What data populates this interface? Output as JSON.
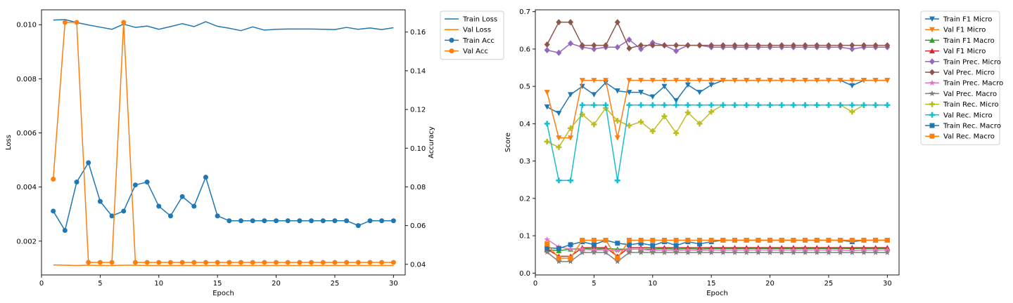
{
  "chart_data": [
    {
      "type": "line",
      "title": "",
      "xlabel": "Epoch",
      "ylabel": "Loss",
      "y2label": "Accuracy",
      "xlim": [
        0,
        31
      ],
      "ylim": [
        0.00075,
        0.01055
      ],
      "y2lim": [
        0.0345,
        0.1715
      ],
      "x": [
        1,
        2,
        3,
        4,
        5,
        6,
        7,
        8,
        9,
        10,
        11,
        12,
        13,
        14,
        15,
        16,
        17,
        18,
        19,
        20,
        21,
        22,
        23,
        24,
        25,
        26,
        27,
        28,
        29,
        30
      ],
      "x_ticks": [
        0,
        5,
        10,
        15,
        20,
        25,
        30
      ],
      "y_ticks": [
        0.002,
        0.004,
        0.006,
        0.008,
        0.01
      ],
      "y_tick_labels": [
        "0.002",
        "0.004",
        "0.006",
        "0.008",
        "0.010"
      ],
      "y2_ticks": [
        0.04,
        0.06,
        0.08,
        0.1,
        0.12,
        0.14,
        0.16
      ],
      "y2_tick_labels": [
        "0.04",
        "0.06",
        "0.08",
        "0.10",
        "0.12",
        "0.14",
        "0.16"
      ],
      "legend_position": "outside-right",
      "series": [
        {
          "name": "Train Loss",
          "axis": "left",
          "color": "#1f77b4",
          "marker": "none",
          "values": [
            0.01017,
            0.01019,
            0.01008,
            0.00999,
            0.00991,
            0.00983,
            0.01002,
            0.0099,
            0.00995,
            0.00983,
            0.00993,
            0.01004,
            0.00993,
            0.01011,
            0.00994,
            0.00987,
            0.00978,
            0.00992,
            0.0098,
            0.00983,
            0.00984,
            0.00984,
            0.00984,
            0.00983,
            0.00982,
            0.0099,
            0.00983,
            0.00988,
            0.00982,
            0.00989
          ]
        },
        {
          "name": "Val Loss",
          "axis": "left",
          "color": "#ff7f0e",
          "marker": "none",
          "values": [
            0.00112,
            0.00111,
            0.0011,
            0.00111,
            0.0011,
            0.0011,
            0.00111,
            0.00111,
            0.0011,
            0.0011,
            0.0011,
            0.0011,
            0.0011,
            0.0011,
            0.0011,
            0.0011,
            0.0011,
            0.0011,
            0.0011,
            0.0011,
            0.0011,
            0.0011,
            0.0011,
            0.0011,
            0.0011,
            0.0011,
            0.0011,
            0.0011,
            0.0011,
            0.0011
          ]
        },
        {
          "name": "Train Acc",
          "axis": "right",
          "color": "#1f77b4",
          "marker": "circle",
          "values": [
            0.0675,
            0.0575,
            0.0825,
            0.0925,
            0.0725,
            0.065,
            0.0675,
            0.081,
            0.0825,
            0.07,
            0.065,
            0.075,
            0.07,
            0.085,
            0.065,
            0.0625,
            0.0625,
            0.0625,
            0.0625,
            0.0625,
            0.0625,
            0.0625,
            0.0625,
            0.0625,
            0.0625,
            0.0625,
            0.06,
            0.0625,
            0.0625,
            0.0625
          ]
        },
        {
          "name": "Val Acc",
          "axis": "right",
          "color": "#ff7f0e",
          "marker": "circle",
          "values": [
            0.084,
            0.165,
            0.165,
            0.041,
            0.041,
            0.041,
            0.165,
            0.041,
            0.041,
            0.041,
            0.041,
            0.041,
            0.041,
            0.041,
            0.041,
            0.041,
            0.041,
            0.041,
            0.041,
            0.041,
            0.041,
            0.041,
            0.041,
            0.041,
            0.041,
            0.041,
            0.041,
            0.041,
            0.041,
            0.041
          ]
        }
      ]
    },
    {
      "type": "line",
      "title": "",
      "xlabel": "Epoch",
      "ylabel": "Score",
      "xlim": [
        0,
        31
      ],
      "ylim": [
        -0.005,
        0.705
      ],
      "x": [
        1,
        2,
        3,
        4,
        5,
        6,
        7,
        8,
        9,
        10,
        11,
        12,
        13,
        14,
        15,
        16,
        17,
        18,
        19,
        20,
        21,
        22,
        23,
        24,
        25,
        26,
        27,
        28,
        29,
        30
      ],
      "x_ticks": [
        0,
        5,
        10,
        15,
        20,
        25,
        30
      ],
      "y_ticks": [
        0.0,
        0.1,
        0.2,
        0.3,
        0.4,
        0.5,
        0.6,
        0.7
      ],
      "y_tick_labels": [
        "0.0",
        "0.1",
        "0.2",
        "0.3",
        "0.4",
        "0.5",
        "0.6",
        "0.7"
      ],
      "legend_position": "outside-right",
      "series": [
        {
          "name": "Train F1 Micro",
          "color": "#1f77b4",
          "marker": "tri_down",
          "values": [
            0.445,
            0.428,
            0.478,
            0.5,
            0.478,
            0.51,
            0.488,
            0.484,
            0.484,
            0.472,
            0.5,
            0.462,
            0.504,
            0.484,
            0.504,
            0.516,
            0.516,
            0.516,
            0.516,
            0.516,
            0.516,
            0.516,
            0.516,
            0.516,
            0.516,
            0.516,
            0.502,
            0.516,
            0.516,
            0.516
          ]
        },
        {
          "name": "Val F1 Micro",
          "color": "#ff7f0e",
          "marker": "tri_down",
          "values": [
            0.484,
            0.362,
            0.362,
            0.516,
            0.516,
            0.516,
            0.362,
            0.516,
            0.516,
            0.516,
            0.516,
            0.516,
            0.516,
            0.516,
            0.516,
            0.516,
            0.516,
            0.516,
            0.516,
            0.516,
            0.516,
            0.516,
            0.516,
            0.516,
            0.516,
            0.516,
            0.516,
            0.516,
            0.516,
            0.516
          ]
        },
        {
          "name": "Train F1 Macro",
          "color": "#2ca02c",
          "marker": "tri_up",
          "values": [
            0.062,
            0.06,
            0.064,
            0.066,
            0.064,
            0.066,
            0.064,
            0.064,
            0.064,
            0.064,
            0.066,
            0.064,
            0.066,
            0.064,
            0.066,
            0.066,
            0.066,
            0.066,
            0.066,
            0.066,
            0.066,
            0.066,
            0.066,
            0.066,
            0.066,
            0.066,
            0.066,
            0.066,
            0.066,
            0.066
          ]
        },
        {
          "name": "Val F1 Micro",
          "color": "#d62728",
          "marker": "tri_up",
          "values": [
            0.064,
            0.045,
            0.045,
            0.068,
            0.068,
            0.068,
            0.045,
            0.068,
            0.068,
            0.068,
            0.068,
            0.068,
            0.068,
            0.068,
            0.068,
            0.068,
            0.068,
            0.068,
            0.068,
            0.068,
            0.068,
            0.068,
            0.068,
            0.068,
            0.068,
            0.068,
            0.068,
            0.068,
            0.068,
            0.068
          ]
        },
        {
          "name": "Train Prec. Micro",
          "color": "#9467bd",
          "marker": "diamond",
          "values": [
            0.597,
            0.59,
            0.615,
            0.605,
            0.6,
            0.605,
            0.605,
            0.625,
            0.6,
            0.617,
            0.61,
            0.595,
            0.61,
            0.61,
            0.605,
            0.605,
            0.605,
            0.605,
            0.605,
            0.605,
            0.605,
            0.605,
            0.605,
            0.605,
            0.605,
            0.605,
            0.6,
            0.605,
            0.605,
            0.605
          ]
        },
        {
          "name": "Val Prec. Micro",
          "color": "#8c564b",
          "marker": "diamond",
          "values": [
            0.612,
            0.672,
            0.672,
            0.61,
            0.61,
            0.61,
            0.672,
            0.602,
            0.61,
            0.61,
            0.61,
            0.61,
            0.61,
            0.61,
            0.61,
            0.61,
            0.61,
            0.61,
            0.61,
            0.61,
            0.61,
            0.61,
            0.61,
            0.61,
            0.61,
            0.61,
            0.61,
            0.61,
            0.61,
            0.61
          ]
        },
        {
          "name": "Train Prec. Macro",
          "color": "#e377c2",
          "marker": "star",
          "values": [
            0.09,
            0.07,
            0.064,
            0.064,
            0.062,
            0.062,
            0.06,
            0.064,
            0.064,
            0.06,
            0.062,
            0.06,
            0.062,
            0.06,
            0.062,
            0.062,
            0.062,
            0.062,
            0.062,
            0.062,
            0.062,
            0.062,
            0.062,
            0.062,
            0.062,
            0.062,
            0.06,
            0.062,
            0.062,
            0.062
          ]
        },
        {
          "name": "Val Prec. Macro",
          "color": "#7f7f7f",
          "marker": "star",
          "values": [
            0.056,
            0.031,
            0.031,
            0.055,
            0.055,
            0.055,
            0.031,
            0.055,
            0.055,
            0.055,
            0.055,
            0.055,
            0.055,
            0.055,
            0.055,
            0.055,
            0.055,
            0.055,
            0.055,
            0.055,
            0.055,
            0.055,
            0.055,
            0.055,
            0.055,
            0.055,
            0.055,
            0.055,
            0.055,
            0.055
          ]
        },
        {
          "name": "Train Rec. Micro",
          "color": "#bcbd22",
          "marker": "plus",
          "values": [
            0.352,
            0.337,
            0.388,
            0.425,
            0.398,
            0.442,
            0.408,
            0.395,
            0.405,
            0.38,
            0.42,
            0.375,
            0.43,
            0.4,
            0.432,
            0.45,
            0.45,
            0.45,
            0.45,
            0.45,
            0.45,
            0.45,
            0.45,
            0.45,
            0.45,
            0.45,
            0.432,
            0.45,
            0.45,
            0.45
          ]
        },
        {
          "name": "Val Rec. Micro",
          "color": "#17becf",
          "marker": "plus",
          "values": [
            0.4,
            0.248,
            0.248,
            0.45,
            0.45,
            0.45,
            0.248,
            0.45,
            0.45,
            0.45,
            0.45,
            0.45,
            0.45,
            0.45,
            0.45,
            0.45,
            0.45,
            0.45,
            0.45,
            0.45,
            0.45,
            0.45,
            0.45,
            0.45,
            0.45,
            0.45,
            0.45,
            0.45,
            0.45,
            0.45
          ]
        },
        {
          "name": "Train Rec. Macro",
          "color": "#1f77b4",
          "marker": "square",
          "values": [
            0.068,
            0.066,
            0.076,
            0.084,
            0.076,
            0.088,
            0.08,
            0.076,
            0.08,
            0.074,
            0.084,
            0.074,
            0.084,
            0.078,
            0.084,
            0.088,
            0.088,
            0.088,
            0.088,
            0.088,
            0.088,
            0.088,
            0.088,
            0.088,
            0.088,
            0.088,
            0.084,
            0.088,
            0.088,
            0.088
          ]
        },
        {
          "name": "Val Rec. Macro",
          "color": "#ff7f0e",
          "marker": "square",
          "values": [
            0.078,
            0.04,
            0.04,
            0.088,
            0.088,
            0.088,
            0.04,
            0.088,
            0.088,
            0.088,
            0.088,
            0.088,
            0.088,
            0.088,
            0.088,
            0.088,
            0.088,
            0.088,
            0.088,
            0.088,
            0.088,
            0.088,
            0.088,
            0.088,
            0.088,
            0.088,
            0.088,
            0.088,
            0.088,
            0.088
          ]
        }
      ]
    }
  ]
}
